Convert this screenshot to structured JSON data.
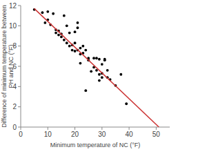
{
  "chart_data": {
    "type": "scatter",
    "x_label": "Minimum temperature of NC (°F)",
    "y_label": "Difference of minimum temperature between PH and NC (°F)",
    "xlim": [
      0,
      55
    ],
    "ylim": [
      0,
      12
    ],
    "xticks": [
      0,
      10,
      20,
      30,
      40,
      50
    ],
    "yticks": [
      0,
      2,
      4,
      6,
      8,
      10,
      12
    ],
    "grid": false,
    "series": [
      {
        "type": "scatter",
        "color": "#000000",
        "marker": "circle",
        "x": [
          5,
          8,
          9,
          10,
          10,
          11,
          12,
          13,
          13,
          14,
          14,
          15,
          15,
          16,
          16,
          17,
          17,
          18,
          18,
          19,
          19,
          20,
          20,
          21,
          21,
          21,
          22,
          22,
          22,
          23,
          23,
          24,
          24,
          25,
          25,
          26,
          27,
          28,
          28,
          29,
          29,
          29,
          30,
          30,
          30,
          31,
          31,
          32,
          32,
          33,
          35,
          37,
          39,
          20,
          27
        ],
        "values": [
          11.6,
          11.3,
          10.3,
          11.4,
          10.6,
          10.1,
          11.2,
          9.6,
          9.3,
          9.5,
          9.1,
          9.2,
          8.9,
          8.6,
          11.0,
          10.0,
          8.3,
          9.3,
          8.0,
          8.1,
          7.6,
          8.3,
          7.5,
          7.6,
          10.3,
          9.8,
          7.8,
          7.2,
          6.3,
          8.0,
          7.3,
          3.6,
          7.6,
          6.6,
          6.8,
          5.5,
          5.9,
          6.8,
          5.6,
          6.7,
          5.2,
          4.6,
          6.2,
          5.3,
          4.9,
          6.6,
          6.7,
          5.6,
          4.9,
          4.7,
          4.1,
          5.2,
          2.3,
          9.4,
          6.8
        ]
      },
      {
        "type": "line",
        "color": "#cc3333",
        "line_style": "solid",
        "x": [
          5,
          51
        ],
        "values": [
          11.7,
          0
        ]
      }
    ]
  }
}
